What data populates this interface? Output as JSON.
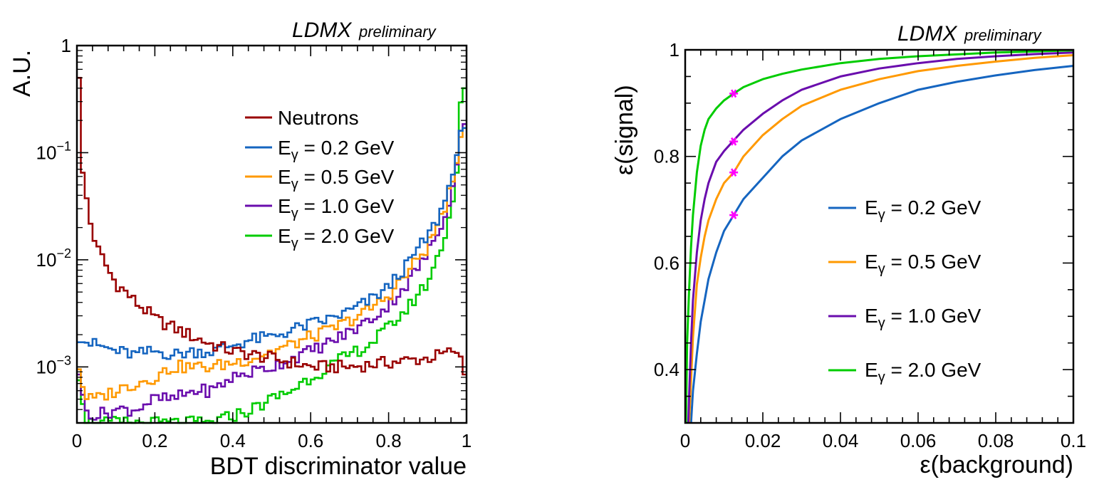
{
  "colors": {
    "neutrons": "#990000",
    "e02": "#1565c0",
    "e05": "#ff9900",
    "e10": "#6a0dad",
    "e20": "#00cc00",
    "marker": "#ff00ff"
  },
  "chart_data": [
    {
      "type": "line",
      "title": "",
      "watermark": {
        "main": "LDMX",
        "sub": "preliminary"
      },
      "xlabel": "BDT discriminator value",
      "ylabel": "A.U.",
      "xlim": [
        0,
        1
      ],
      "ylim": [
        0.0003,
        1
      ],
      "yscale": "log",
      "grid": false,
      "legend_position": "top-center",
      "xticks": [
        "0",
        "0.2",
        "0.4",
        "0.6",
        "0.8",
        "1"
      ],
      "yticks": [
        "1",
        "10",
        "10",
        "10"
      ],
      "yticks_exp": [
        "",
        "−1",
        "−2",
        "−3"
      ],
      "series": [
        {
          "name": "Neutrons",
          "prefix": "Neutrons",
          "sub": "",
          "suffix": "",
          "color_key": "neutrons",
          "x": [
            0,
            0.005,
            0.01,
            0.02,
            0.03,
            0.05,
            0.08,
            0.1,
            0.15,
            0.2,
            0.25,
            0.3,
            0.35,
            0.4,
            0.5,
            0.6,
            0.7,
            0.8,
            0.9,
            0.97,
            0.99,
            1.0
          ],
          "y": [
            0.75,
            0.5,
            0.08,
            0.05,
            0.025,
            0.013,
            0.008,
            0.006,
            0.004,
            0.0028,
            0.0023,
            0.0019,
            0.0016,
            0.0014,
            0.0012,
            0.001,
            0.001,
            0.0011,
            0.0012,
            0.0014,
            0.0012,
            0.0005
          ]
        },
        {
          "name": "E_γ = 0.2 GeV",
          "prefix": "E",
          "sub": "γ",
          "suffix": " = 0.2 GeV",
          "color_key": "e02",
          "x": [
            0,
            0.02,
            0.05,
            0.1,
            0.15,
            0.2,
            0.25,
            0.3,
            0.35,
            0.4,
            0.45,
            0.5,
            0.55,
            0.6,
            0.65,
            0.7,
            0.75,
            0.8,
            0.85,
            0.9,
            0.93,
            0.95,
            0.97,
            0.98,
            0.99,
            1.0
          ],
          "y": [
            0.0017,
            0.0017,
            0.0016,
            0.0014,
            0.0013,
            0.0014,
            0.0013,
            0.0014,
            0.0014,
            0.0016,
            0.0018,
            0.0019,
            0.0022,
            0.0025,
            0.0028,
            0.0033,
            0.0041,
            0.0055,
            0.009,
            0.016,
            0.025,
            0.04,
            0.07,
            0.12,
            0.2,
            0.14
          ]
        },
        {
          "name": "E_γ = 0.5 GeV",
          "prefix": "E",
          "sub": "γ",
          "suffix": " = 0.5 GeV",
          "color_key": "e05",
          "x": [
            0,
            0.02,
            0.05,
            0.1,
            0.15,
            0.2,
            0.25,
            0.3,
            0.35,
            0.4,
            0.45,
            0.5,
            0.55,
            0.6,
            0.65,
            0.7,
            0.75,
            0.8,
            0.85,
            0.9,
            0.93,
            0.95,
            0.97,
            0.98,
            0.99,
            1.0
          ],
          "y": [
            0.0011,
            0.0005,
            0.0005,
            0.0006,
            0.0007,
            0.0008,
            0.001,
            0.001,
            0.001,
            0.0011,
            0.0012,
            0.0014,
            0.0016,
            0.0019,
            0.0022,
            0.0027,
            0.0034,
            0.0046,
            0.0075,
            0.013,
            0.022,
            0.035,
            0.06,
            0.1,
            0.18,
            0.16
          ]
        },
        {
          "name": "E_γ = 1.0 GeV",
          "prefix": "E",
          "sub": "γ",
          "suffix": " = 1.0 GeV",
          "color_key": "e10",
          "x": [
            0,
            0.02,
            0.05,
            0.1,
            0.15,
            0.2,
            0.25,
            0.3,
            0.35,
            0.4,
            0.45,
            0.5,
            0.55,
            0.6,
            0.65,
            0.7,
            0.75,
            0.8,
            0.85,
            0.9,
            0.93,
            0.95,
            0.97,
            0.98,
            0.99,
            1.0
          ],
          "y": [
            0.001,
            0.0004,
            0.00035,
            0.0004,
            0.0004,
            0.0005,
            0.0005,
            0.0006,
            0.0006,
            0.0008,
            0.0009,
            0.001,
            0.0012,
            0.0014,
            0.0017,
            0.0021,
            0.0027,
            0.0037,
            0.006,
            0.011,
            0.019,
            0.03,
            0.055,
            0.1,
            0.22,
            0.15
          ]
        },
        {
          "name": "E_γ = 2.0 GeV",
          "prefix": "E",
          "sub": "γ",
          "suffix": " = 2.0 GeV",
          "color_key": "e20",
          "x": [
            0,
            0.02,
            0.05,
            0.1,
            0.15,
            0.2,
            0.25,
            0.3,
            0.35,
            0.4,
            0.45,
            0.5,
            0.55,
            0.6,
            0.65,
            0.7,
            0.75,
            0.8,
            0.85,
            0.9,
            0.93,
            0.95,
            0.97,
            0.98,
            0.99,
            1.0
          ],
          "y": [
            0.0009,
            0.0003,
            0.0003,
            0.0003,
            0.0003,
            0.0003,
            0.0003,
            0.0003,
            0.0003,
            0.00035,
            0.0004,
            0.0005,
            0.0006,
            0.0008,
            0.001,
            0.0013,
            0.0016,
            0.0023,
            0.0035,
            0.006,
            0.011,
            0.02,
            0.04,
            0.09,
            0.5,
            0.3
          ]
        }
      ]
    },
    {
      "type": "line",
      "title": "",
      "watermark": {
        "main": "LDMX",
        "sub": "preliminary"
      },
      "xlabel": "ε(background)",
      "ylabel": "ε(signal)",
      "xlim": [
        0,
        0.1
      ],
      "ylim": [
        0.3,
        1
      ],
      "grid": false,
      "legend_position": "center-right",
      "xticks": [
        "0",
        "0.02",
        "0.04",
        "0.06",
        "0.08",
        "0.1"
      ],
      "yticks": [
        "1",
        "0.8",
        "0.6",
        "0.4"
      ],
      "series": [
        {
          "name": "E_γ = 0.2 GeV",
          "prefix": "E",
          "sub": "γ",
          "suffix": " = 0.2 GeV",
          "color_key": "e02",
          "x": [
            0.0015,
            0.002,
            0.003,
            0.004,
            0.005,
            0.006,
            0.008,
            0.01,
            0.0125,
            0.015,
            0.02,
            0.025,
            0.03,
            0.04,
            0.05,
            0.06,
            0.07,
            0.08,
            0.09,
            0.1
          ],
          "y": [
            0.3,
            0.36,
            0.43,
            0.49,
            0.53,
            0.57,
            0.62,
            0.66,
            0.69,
            0.72,
            0.76,
            0.8,
            0.83,
            0.87,
            0.9,
            0.925,
            0.94,
            0.952,
            0.962,
            0.97
          ],
          "marker": {
            "x": 0.0125,
            "y": 0.69
          }
        },
        {
          "name": "E_γ = 0.5 GeV",
          "prefix": "E",
          "sub": "γ",
          "suffix": " = 0.5 GeV",
          "color_key": "e05",
          "x": [
            0.001,
            0.0015,
            0.002,
            0.003,
            0.004,
            0.005,
            0.006,
            0.008,
            0.01,
            0.0125,
            0.015,
            0.02,
            0.025,
            0.03,
            0.04,
            0.05,
            0.06,
            0.07,
            0.08,
            0.09,
            0.1
          ],
          "y": [
            0.3,
            0.38,
            0.46,
            0.56,
            0.61,
            0.65,
            0.68,
            0.72,
            0.75,
            0.77,
            0.8,
            0.84,
            0.87,
            0.895,
            0.925,
            0.945,
            0.96,
            0.97,
            0.978,
            0.985,
            0.99
          ],
          "marker": {
            "x": 0.0125,
            "y": 0.77
          }
        },
        {
          "name": "E_γ = 1.0 GeV",
          "prefix": "E",
          "sub": "γ",
          "suffix": " = 1.0 GeV",
          "color_key": "e10",
          "x": [
            0.0008,
            0.001,
            0.0015,
            0.002,
            0.003,
            0.004,
            0.005,
            0.006,
            0.008,
            0.01,
            0.0125,
            0.015,
            0.02,
            0.025,
            0.03,
            0.04,
            0.05,
            0.06,
            0.07,
            0.08,
            0.09,
            0.1
          ],
          "y": [
            0.3,
            0.35,
            0.45,
            0.53,
            0.62,
            0.68,
            0.72,
            0.75,
            0.79,
            0.81,
            0.83,
            0.85,
            0.88,
            0.905,
            0.925,
            0.95,
            0.965,
            0.975,
            0.983,
            0.988,
            0.992,
            0.995
          ],
          "marker": {
            "x": 0.0125,
            "y": 0.828
          }
        },
        {
          "name": "E_γ = 2.0 GeV",
          "prefix": "E",
          "sub": "γ",
          "suffix": " = 2.0 GeV",
          "color_key": "e20",
          "x": [
            0.0002,
            0.0005,
            0.001,
            0.0015,
            0.002,
            0.003,
            0.004,
            0.005,
            0.006,
            0.008,
            0.01,
            0.0125,
            0.015,
            0.02,
            0.025,
            0.03,
            0.04,
            0.05,
            0.06,
            0.08,
            0.1
          ],
          "y": [
            0.3,
            0.45,
            0.55,
            0.63,
            0.69,
            0.77,
            0.82,
            0.85,
            0.87,
            0.89,
            0.905,
            0.918,
            0.93,
            0.945,
            0.955,
            0.963,
            0.975,
            0.983,
            0.988,
            0.995,
            0.999
          ],
          "marker": {
            "x": 0.0125,
            "y": 0.918
          }
        }
      ]
    }
  ]
}
